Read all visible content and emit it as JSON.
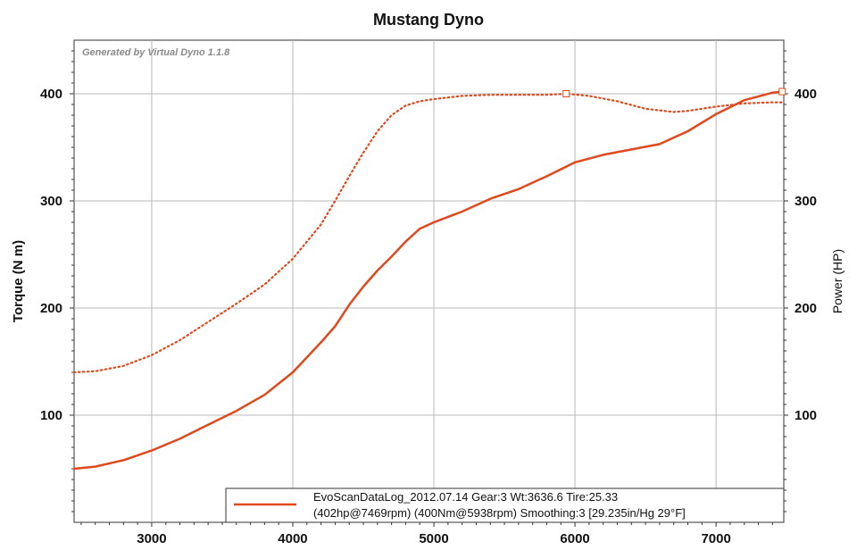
{
  "chart_data": {
    "type": "line",
    "title": "Mustang Dyno",
    "watermark": "Generated by Virtual Dyno 1.1.8",
    "xlabel": "",
    "ylabel_left": "Torque (N m)",
    "ylabel_right": "Power (HP)",
    "xlim": [
      2450,
      7480
    ],
    "ylim": [
      0,
      450
    ],
    "x_ticks": [
      3000,
      4000,
      5000,
      6000,
      7000
    ],
    "y_ticks": [
      100,
      200,
      300,
      400
    ],
    "grid": true,
    "line_color": "#e0491c",
    "legend": {
      "position": "bottom-right",
      "line1": "EvoScanDataLog_2012.07.14 Gear:3 Wt:3636.6 Tire:25.33",
      "line2": "(402hp@7469rpm) (400Nm@5938rpm) Smoothing:3 [29.235in/Hg 29°F]"
    },
    "series": [
      {
        "axis": "right",
        "style": "solid",
        "x": [
          2450,
          2600,
          2800,
          3000,
          3200,
          3400,
          3600,
          3800,
          4000,
          4200,
          4300,
          4400,
          4500,
          4600,
          4700,
          4800,
          4900,
          5000,
          5200,
          5400,
          5600,
          5800,
          6000,
          6200,
          6400,
          6600,
          6800,
          7000,
          7200,
          7400,
          7469
        ],
        "values": [
          50,
          52,
          58,
          67,
          78,
          91,
          104,
          119,
          140,
          168,
          183,
          203,
          220,
          235,
          248,
          262,
          274,
          280,
          290,
          302,
          311,
          323,
          336,
          343,
          348,
          353,
          365,
          381,
          394,
          401,
          402
        ]
      },
      {
        "axis": "left",
        "style": "dotted",
        "x": [
          2450,
          2600,
          2800,
          3000,
          3200,
          3400,
          3600,
          3800,
          4000,
          4200,
          4300,
          4400,
          4500,
          4600,
          4700,
          4800,
          4900,
          5000,
          5200,
          5400,
          5600,
          5800,
          5938,
          6100,
          6300,
          6500,
          6700,
          6800,
          7000,
          7200,
          7400,
          7469
        ],
        "values": [
          140,
          141,
          146,
          156,
          170,
          187,
          204,
          222,
          246,
          278,
          300,
          323,
          345,
          365,
          380,
          389,
          393,
          395,
          398,
          399,
          399,
          399,
          400,
          398,
          393,
          386,
          383,
          384,
          388,
          391,
          392,
          392
        ]
      }
    ],
    "markers": [
      {
        "x": 5938,
        "y": 400
      },
      {
        "x": 7469,
        "y": 402
      }
    ]
  }
}
